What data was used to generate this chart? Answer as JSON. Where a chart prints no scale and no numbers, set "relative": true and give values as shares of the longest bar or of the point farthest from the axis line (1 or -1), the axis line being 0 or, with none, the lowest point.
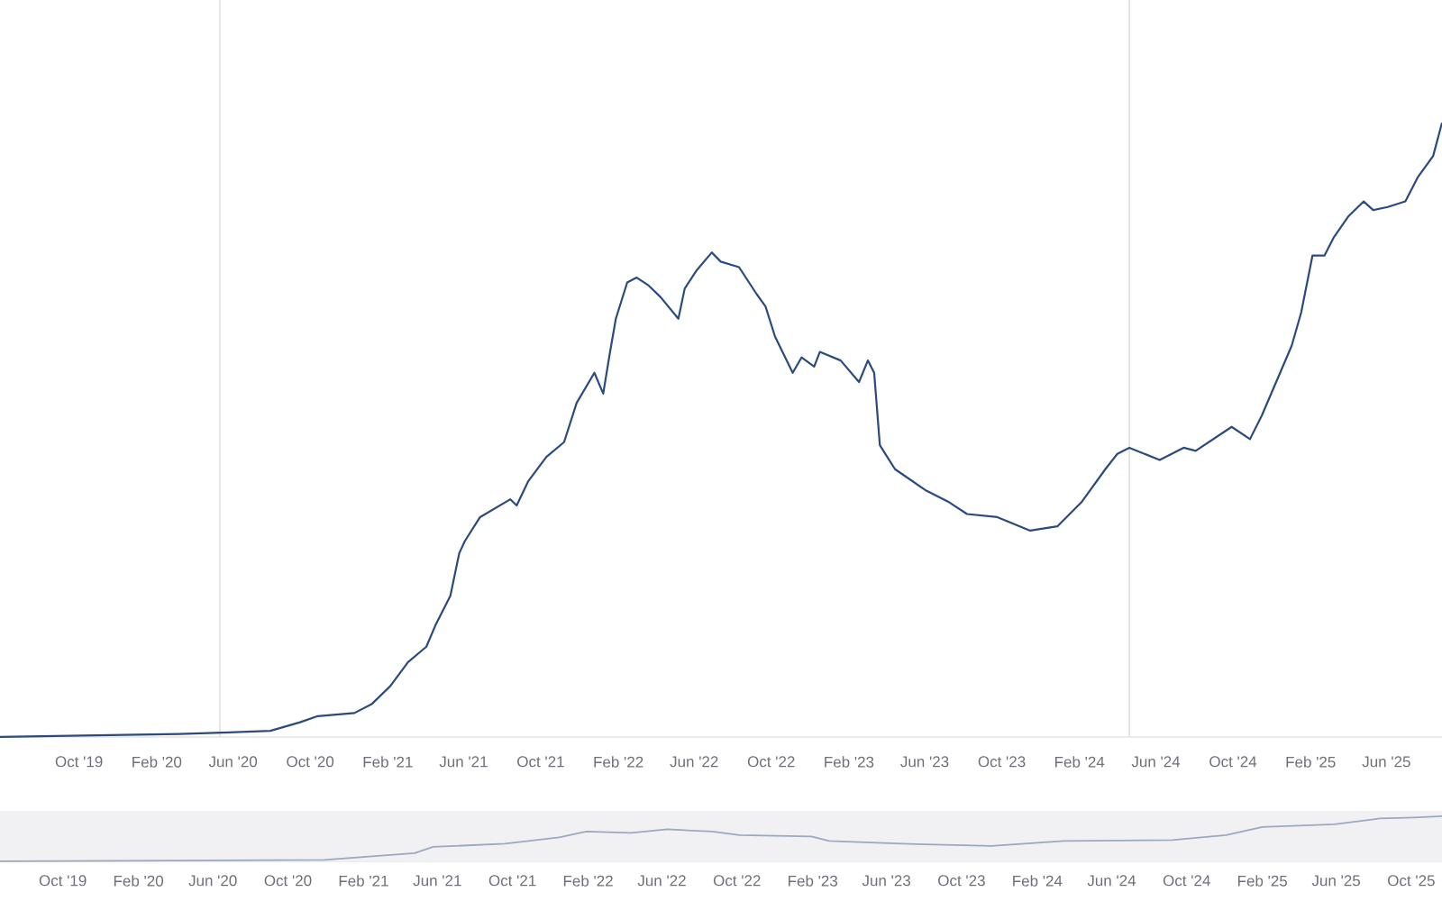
{
  "chart_data": [
    {
      "type": "line",
      "relative": true,
      "color": "#2b4a7d",
      "x": [
        "2019-05-29",
        "2020-03-08",
        "2020-05-14",
        "2020-07-30",
        "2020-09-15",
        "2020-10-13",
        "2020-12-10",
        "2021-01-07",
        "2021-02-05",
        "2021-03-05",
        "2021-04-03",
        "2021-04-17",
        "2021-05-11",
        "2021-05-25",
        "2021-06-03",
        "2021-06-27",
        "2021-08-14",
        "2021-08-24",
        "2021-09-11",
        "2021-10-10",
        "2021-11-07",
        "2021-11-27",
        "2021-12-25",
        "2022-01-08",
        "2022-01-18",
        "2022-01-28",
        "2022-02-15",
        "2022-03-02",
        "2022-03-21",
        "2022-04-09",
        "2022-05-07",
        "2022-05-17",
        "2022-06-05",
        "2022-06-29",
        "2022-07-13",
        "2022-08-11",
        "2022-09-08",
        "2022-09-22",
        "2022-10-07",
        "2022-11-04",
        "2022-11-18",
        "2022-12-08",
        "2022-12-17",
        "2023-01-19",
        "2023-02-17",
        "2023-03-03",
        "2023-03-13",
        "2023-03-22",
        "2023-04-15",
        "2023-06-02",
        "2023-07-10",
        "2023-08-07",
        "2023-09-24",
        "2023-11-15",
        "2023-12-28",
        "2024-02-04",
        "2024-03-13",
        "2024-04-01",
        "2024-04-20",
        "2024-06-07",
        "2024-07-15",
        "2024-08-03",
        "2024-09-29",
        "2024-10-28",
        "2024-11-16",
        "2025-01-02",
        "2025-01-17",
        "2025-02-04",
        "2025-02-23",
        "2025-03-10",
        "2025-04-02",
        "2025-04-26",
        "2025-05-11",
        "2025-06-03",
        "2025-07-01",
        "2025-07-21",
        "2025-08-14",
        "2025-08-28"
      ],
      "values": [
        0.0,
        0.005,
        0.007,
        0.01,
        0.024,
        0.034,
        0.039,
        0.054,
        0.083,
        0.122,
        0.147,
        0.181,
        0.23,
        0.299,
        0.319,
        0.358,
        0.387,
        0.377,
        0.416,
        0.456,
        0.48,
        0.544,
        0.593,
        0.559,
        0.622,
        0.681,
        0.74,
        0.748,
        0.735,
        0.716,
        0.681,
        0.73,
        0.76,
        0.789,
        0.774,
        0.765,
        0.721,
        0.701,
        0.652,
        0.593,
        0.618,
        0.603,
        0.627,
        0.613,
        0.578,
        0.613,
        0.593,
        0.475,
        0.436,
        0.402,
        0.382,
        0.363,
        0.358,
        0.336,
        0.343,
        0.382,
        0.436,
        0.461,
        0.471,
        0.451,
        0.471,
        0.466,
        0.505,
        0.485,
        0.524,
        0.637,
        0.691,
        0.784,
        0.784,
        0.814,
        0.848,
        0.872,
        0.858,
        0.863,
        0.872,
        0.912,
        0.946,
        1.0
      ],
      "xlim": [
        "2019-05-29",
        "2025-08-28"
      ],
      "xticks": [
        {
          "value": "2019-10",
          "label": "Oct '19"
        },
        {
          "value": "2020-02",
          "label": "Feb '20"
        },
        {
          "value": "2020-06",
          "label": "Jun '20"
        },
        {
          "value": "2020-10",
          "label": "Oct '20"
        },
        {
          "value": "2021-02",
          "label": "Feb '21"
        },
        {
          "value": "2021-06",
          "label": "Jun '21"
        },
        {
          "value": "2021-10",
          "label": "Oct '21"
        },
        {
          "value": "2022-02",
          "label": "Feb '22"
        },
        {
          "value": "2022-06",
          "label": "Jun '22"
        },
        {
          "value": "2022-10",
          "label": "Oct '22"
        },
        {
          "value": "2023-02",
          "label": "Feb '23"
        },
        {
          "value": "2023-06",
          "label": "Jun '23"
        },
        {
          "value": "2023-10",
          "label": "Oct '23"
        },
        {
          "value": "2024-02",
          "label": "Feb '24"
        },
        {
          "value": "2024-06",
          "label": "Jun '24"
        },
        {
          "value": "2024-10",
          "label": "Oct '24"
        },
        {
          "value": "2025-02",
          "label": "Feb '25"
        },
        {
          "value": "2025-06",
          "label": "Jun '25"
        }
      ],
      "ref_lines": [
        {
          "axis": "x",
          "value": "2020-05-11",
          "color": "#dde1e8"
        },
        {
          "axis": "x",
          "value": "2024-04-20",
          "color": "#dde1e8"
        }
      ]
    },
    {
      "type": "line",
      "relative": true,
      "color": "#9aa8c0",
      "x": [
        "2019-06-21",
        "2020-11-29",
        "2021-04-25",
        "2021-05-25",
        "2021-09-19",
        "2021-12-16",
        "2022-01-29",
        "2022-04-12",
        "2022-06-10",
        "2022-08-22",
        "2022-10-05",
        "2023-01-30",
        "2023-02-28",
        "2023-06-26",
        "2023-11-19",
        "2024-03-15",
        "2024-09-07",
        "2024-12-04",
        "2025-02-01",
        "2025-05-29",
        "2025-08-10",
        "2025-10-05",
        "2025-11-20"
      ],
      "values": [
        0.0,
        0.03,
        0.18,
        0.32,
        0.39,
        0.53,
        0.66,
        0.63,
        0.71,
        0.66,
        0.58,
        0.55,
        0.45,
        0.39,
        0.34,
        0.45,
        0.47,
        0.58,
        0.76,
        0.82,
        0.95,
        0.97,
        1.0
      ],
      "xlim": [
        "2019-06-21",
        "2025-11-20"
      ],
      "xticks": [
        {
          "value": "2019-10",
          "label": "Oct '19"
        },
        {
          "value": "2020-02",
          "label": "Feb '20"
        },
        {
          "value": "2020-06",
          "label": "Jun '20"
        },
        {
          "value": "2020-10",
          "label": "Oct '20"
        },
        {
          "value": "2021-02",
          "label": "Feb '21"
        },
        {
          "value": "2021-06",
          "label": "Jun '21"
        },
        {
          "value": "2021-10",
          "label": "Oct '21"
        },
        {
          "value": "2022-02",
          "label": "Feb '22"
        },
        {
          "value": "2022-06",
          "label": "Jun '22"
        },
        {
          "value": "2022-10",
          "label": "Oct '22"
        },
        {
          "value": "2023-02",
          "label": "Feb '23"
        },
        {
          "value": "2023-06",
          "label": "Jun '23"
        },
        {
          "value": "2023-10",
          "label": "Oct '23"
        },
        {
          "value": "2024-02",
          "label": "Feb '24"
        },
        {
          "value": "2024-06",
          "label": "Jun '24"
        },
        {
          "value": "2024-10",
          "label": "Oct '24"
        },
        {
          "value": "2025-02",
          "label": "Feb '25"
        },
        {
          "value": "2025-06",
          "label": "Jun '25"
        },
        {
          "value": "2025-10",
          "label": "Oct '25"
        }
      ],
      "bands": [
        {
          "axis": "x",
          "from": "2019-06-21",
          "to": "2025-11-20",
          "color": "#f1f1f4"
        }
      ]
    }
  ]
}
